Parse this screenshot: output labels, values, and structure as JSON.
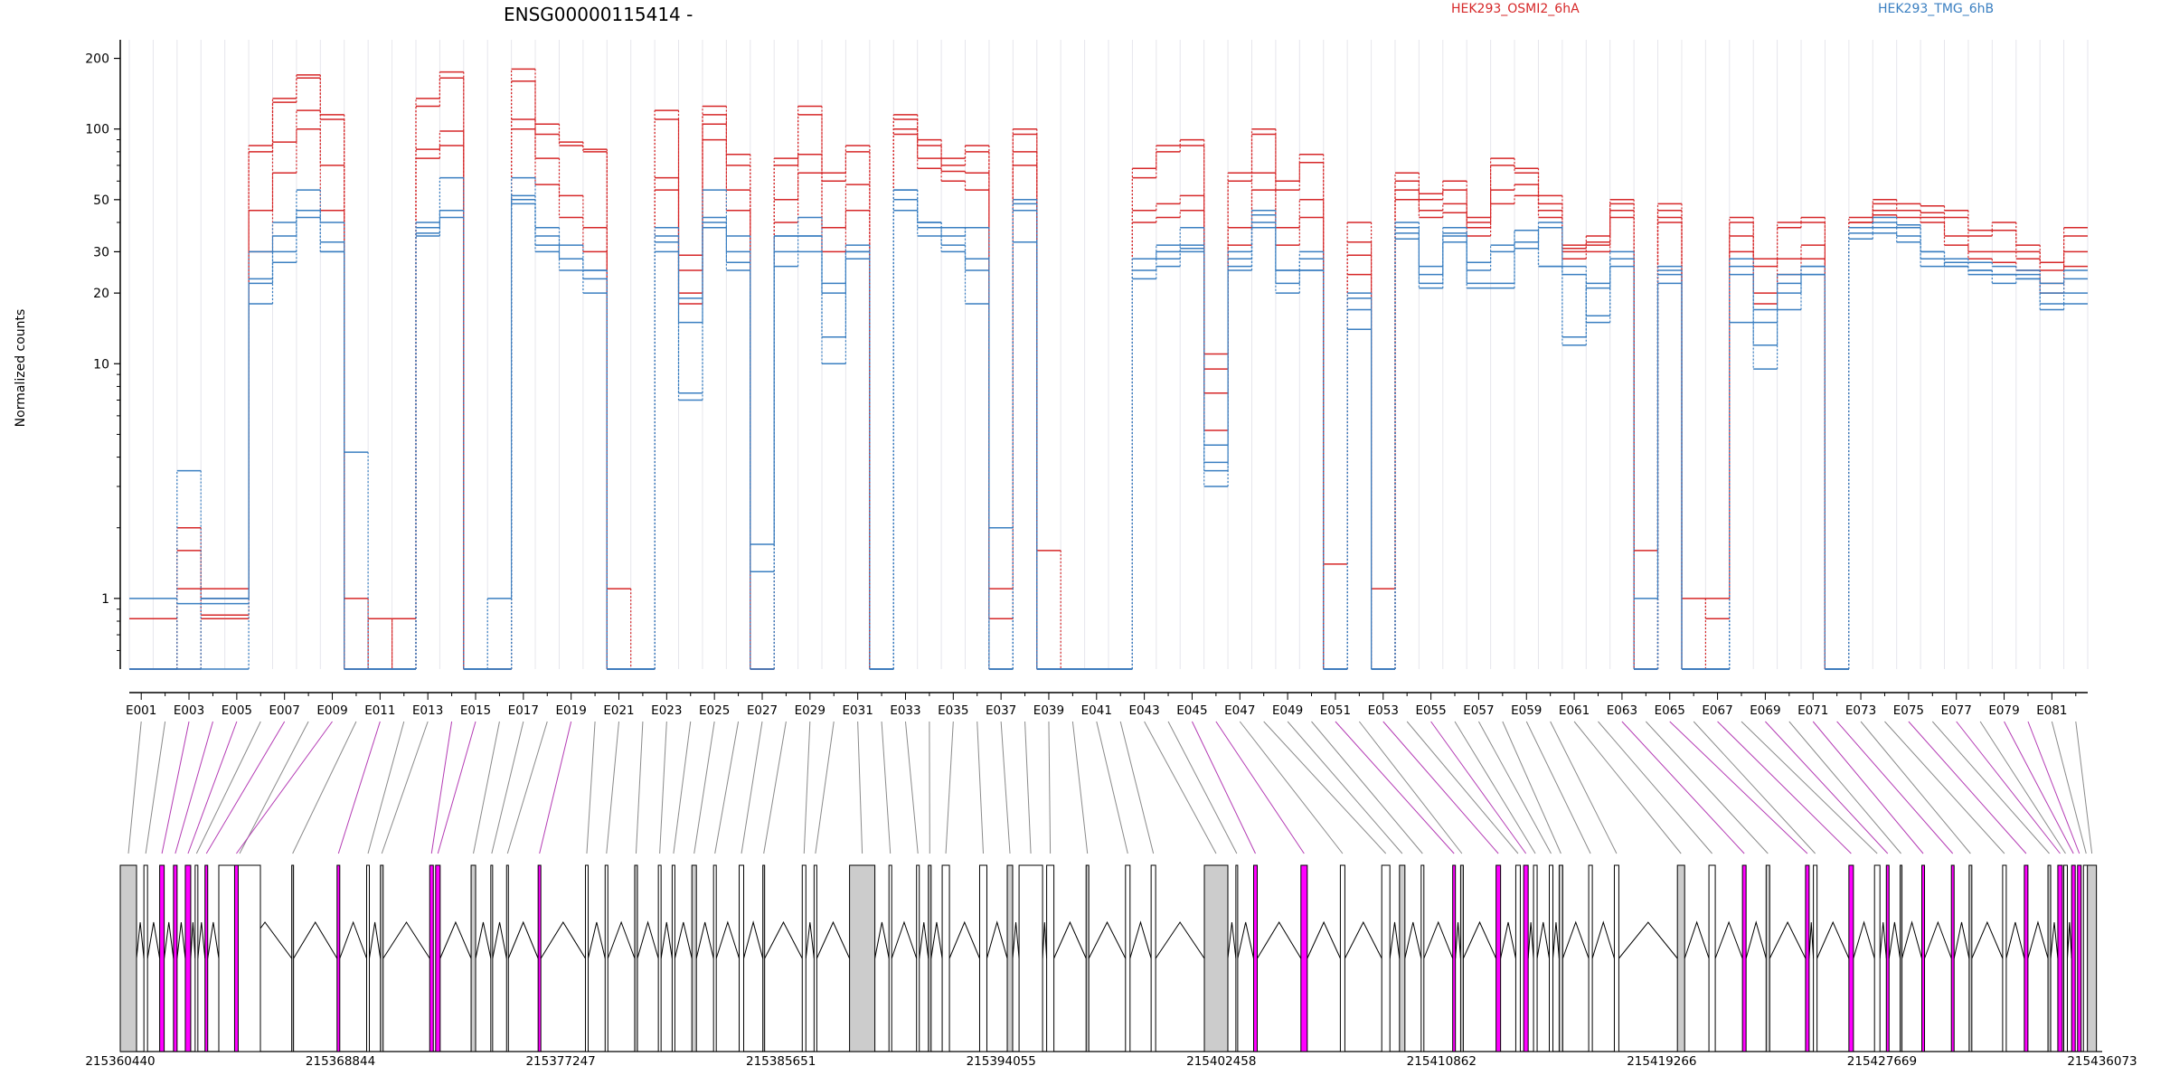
{
  "chart_data": {
    "type": "line",
    "title": "ENSG00000115414 -",
    "ylabel": "Normalized counts",
    "xlabel": "",
    "y_scale": "log",
    "ylim": [
      0.5,
      240
    ],
    "y_ticks": [
      "1",
      "10",
      "20",
      "30",
      "50",
      "100",
      "200"
    ],
    "y_tick_values": [
      1,
      10,
      20,
      30,
      50,
      100,
      200
    ],
    "grid": "vertical",
    "legend": [
      {
        "label": "HEK293_OSMI2_6hA",
        "color": "#d62728",
        "position": "top"
      },
      {
        "label": "HEK293_TMG_6hB",
        "color": "#3a7fc1",
        "position": "top-right"
      }
    ],
    "exons": [
      "E001",
      "E002",
      "E003",
      "E004",
      "E005",
      "E006",
      "E007",
      "E008",
      "E009",
      "E010",
      "E011",
      "E012",
      "E013",
      "E014",
      "E015",
      "E016",
      "E017",
      "E018",
      "E019",
      "E020",
      "E021",
      "E022",
      "E023",
      "E024",
      "E025",
      "E026",
      "E027",
      "E028",
      "E029",
      "E030",
      "E031",
      "E032",
      "E033",
      "E034",
      "E035",
      "E036",
      "E037",
      "E038",
      "E039",
      "E040",
      "E041",
      "E042",
      "E043",
      "E044",
      "E045",
      "E046",
      "E047",
      "E048",
      "E049",
      "E050",
      "E051",
      "E052",
      "E053",
      "E054",
      "E055",
      "E056",
      "E057",
      "E058",
      "E059",
      "E060",
      "E061",
      "E062",
      "E063",
      "E064",
      "E065",
      "E066",
      "E067",
      "E068",
      "E069",
      "E070",
      "E071",
      "E072",
      "E073",
      "E074",
      "E075",
      "E076",
      "E077",
      "E078",
      "E079",
      "E080",
      "E081",
      "E082"
    ],
    "x_tick_labels": [
      "E001",
      "E003",
      "E005",
      "E007",
      "E009",
      "E011",
      "E013",
      "E015",
      "E017",
      "E019",
      "E021",
      "E023",
      "E025",
      "E027",
      "E029",
      "E031",
      "E033",
      "E035",
      "E037",
      "E039",
      "E041",
      "E043",
      "E045",
      "E047",
      "E049",
      "E051",
      "E053",
      "E055",
      "E057",
      "E059",
      "E061",
      "E063",
      "E065",
      "E067",
      "E069",
      "E071",
      "E073",
      "E075",
      "E077",
      "E079",
      "E081"
    ],
    "series": [
      {
        "group": "HEK293_OSMI2_6hA",
        "color": "#d62728",
        "values": [
          0.82,
          0.82,
          1.6,
          1.1,
          1.1,
          80,
          135,
          170,
          110,
          1.0,
          0.5,
          0.82,
          135,
          175,
          0.5,
          0.5,
          180,
          105,
          85,
          80,
          1.1,
          0.5,
          120,
          29,
          125,
          78,
          0.5,
          75,
          125,
          65,
          85,
          0.5,
          115,
          90,
          75,
          85,
          0.82,
          100,
          1.6,
          0.5,
          0.5,
          0.5,
          68,
          85,
          90,
          9.5,
          65,
          100,
          60,
          78,
          1.4,
          40,
          1.1,
          65,
          53,
          60,
          42,
          75,
          68,
          52,
          32,
          35,
          50,
          1.6,
          48,
          1.0,
          0.82,
          42,
          28,
          40,
          42,
          0.5,
          42,
          50,
          48,
          47,
          45,
          37,
          40,
          32,
          27,
          38
        ]
      },
      {
        "group": "HEK293_OSMI2_6hA",
        "color": "#d62728",
        "values": [
          0.5,
          0.5,
          2.0,
          1.0,
          1.0,
          85,
          130,
          165,
          115,
          0.5,
          0.82,
          0.5,
          125,
          165,
          0.5,
          0.5,
          160,
          95,
          88,
          82,
          0.5,
          0.5,
          110,
          25,
          115,
          70,
          0.5,
          70,
          115,
          60,
          80,
          0.5,
          110,
          85,
          70,
          80,
          1.1,
          95,
          0.5,
          0.5,
          0.5,
          0.5,
          62,
          80,
          85,
          11,
          60,
          95,
          55,
          72,
          0.5,
          33,
          0.5,
          60,
          50,
          55,
          40,
          70,
          65,
          48,
          30,
          33,
          48,
          0.5,
          45,
          0.5,
          1.0,
          40,
          26,
          38,
          40,
          0.5,
          40,
          48,
          45,
          44,
          42,
          35,
          37,
          30,
          25,
          35
        ]
      },
      {
        "group": "HEK293_OSMI2_6hA",
        "color": "#d62728",
        "values": [
          0.5,
          0.5,
          1.1,
          0.85,
          0.85,
          45,
          88,
          120,
          70,
          0.5,
          0.5,
          0.5,
          82,
          98,
          0.5,
          0.5,
          110,
          75,
          52,
          38,
          0.5,
          0.5,
          62,
          20,
          105,
          55,
          0.5,
          50,
          78,
          38,
          58,
          0.5,
          100,
          75,
          66,
          65,
          0.82,
          80,
          0.5,
          0.5,
          0.5,
          0.5,
          45,
          48,
          52,
          5.2,
          38,
          65,
          38,
          50,
          0.5,
          29,
          0.5,
          55,
          45,
          48,
          38,
          55,
          58,
          45,
          31,
          32,
          45,
          0.5,
          42,
          0.5,
          0.5,
          35,
          20,
          28,
          32,
          0.5,
          40,
          45,
          45,
          42,
          35,
          30,
          30,
          28,
          22,
          30
        ]
      },
      {
        "group": "HEK293_OSMI2_6hA",
        "color": "#d62728",
        "values": [
          0.5,
          0.5,
          0.5,
          0.82,
          0.82,
          30,
          65,
          100,
          45,
          0.5,
          0.5,
          0.5,
          75,
          85,
          0.5,
          0.5,
          100,
          58,
          42,
          30,
          0.5,
          0.5,
          55,
          18,
          90,
          45,
          0.5,
          40,
          65,
          30,
          45,
          0.5,
          95,
          68,
          60,
          55,
          0.5,
          70,
          0.5,
          0.5,
          0.5,
          0.5,
          40,
          42,
          45,
          7.5,
          32,
          55,
          32,
          42,
          0.5,
          24,
          0.5,
          50,
          42,
          44,
          35,
          48,
          52,
          42,
          28,
          30,
          42,
          0.5,
          40,
          0.5,
          0.5,
          30,
          18,
          24,
          28,
          0.5,
          38,
          43,
          42,
          40,
          32,
          28,
          27,
          25,
          20,
          26
        ]
      },
      {
        "group": "HEK293_TMG_6hB",
        "color": "#3a7fc1",
        "values": [
          1.0,
          1.0,
          0.95,
          0.95,
          0.95,
          18,
          27,
          45,
          30,
          0.5,
          0.5,
          0.5,
          38,
          45,
          0.5,
          1.0,
          52,
          35,
          28,
          25,
          0.5,
          0.5,
          33,
          7.5,
          40,
          27,
          0.5,
          26,
          42,
          10,
          30,
          0.5,
          55,
          40,
          38,
          18,
          2.0,
          33,
          0.5,
          0.5,
          0.5,
          0.5,
          23,
          30,
          31,
          3.8,
          26,
          38,
          20,
          25,
          0.5,
          14,
          0.5,
          38,
          21,
          36,
          21,
          21,
          37,
          26,
          13,
          21,
          26,
          1.0,
          22,
          0.5,
          0.5,
          15,
          9.5,
          17,
          24,
          0.5,
          38,
          42,
          39,
          26,
          27,
          25,
          22,
          23,
          17,
          18
        ]
      },
      {
        "group": "HEK293_TMG_6hB",
        "color": "#3a7fc1",
        "values": [
          0.5,
          0.5,
          3.5,
          1.0,
          1.0,
          23,
          35,
          55,
          40,
          4.2,
          0.5,
          0.5,
          40,
          62,
          0.5,
          0.5,
          62,
          38,
          32,
          25,
          0.5,
          0.5,
          35,
          7.0,
          55,
          35,
          0.5,
          35,
          35,
          13,
          30,
          0.5,
          55,
          40,
          35,
          38,
          0.5,
          48,
          0.5,
          0.5,
          0.5,
          0.5,
          28,
          32,
          38,
          3.5,
          30,
          45,
          25,
          30,
          0.5,
          20,
          0.5,
          40,
          22,
          38,
          22,
          22,
          37,
          26,
          12,
          22,
          28,
          0.5,
          25,
          0.5,
          0.5,
          28,
          12,
          20,
          26,
          0.5,
          38,
          40,
          38,
          30,
          26,
          24,
          24,
          24,
          18,
          20
        ]
      },
      {
        "group": "HEK293_TMG_6hB",
        "color": "#3a7fc1",
        "values": [
          0.5,
          0.5,
          0.5,
          1.0,
          1.0,
          30,
          40,
          45,
          33,
          0.5,
          0.5,
          0.5,
          36,
          45,
          0.5,
          0.5,
          50,
          32,
          28,
          23,
          0.5,
          0.5,
          38,
          19,
          42,
          30,
          1.7,
          35,
          35,
          22,
          32,
          0.5,
          50,
          38,
          32,
          28,
          0.5,
          50,
          0.5,
          0.5,
          0.5,
          0.5,
          28,
          28,
          32,
          4.5,
          28,
          43,
          25,
          28,
          0.5,
          19,
          0.5,
          36,
          26,
          35,
          27,
          32,
          33,
          40,
          26,
          16,
          30,
          0.5,
          26,
          0.5,
          0.5,
          26,
          17,
          24,
          26,
          0.5,
          36,
          38,
          35,
          30,
          28,
          27,
          26,
          25,
          22,
          25
        ]
      },
      {
        "group": "HEK293_TMG_6hB",
        "color": "#3a7fc1",
        "values": [
          0.5,
          0.5,
          0.5,
          0.5,
          0.5,
          22,
          30,
          42,
          30,
          0.5,
          0.5,
          0.5,
          35,
          42,
          0.5,
          0.5,
          48,
          30,
          25,
          20,
          0.5,
          0.5,
          30,
          15,
          38,
          25,
          1.3,
          30,
          30,
          20,
          28,
          0.5,
          45,
          35,
          30,
          25,
          0.5,
          45,
          0.5,
          0.5,
          0.5,
          0.5,
          25,
          26,
          30,
          3.0,
          25,
          40,
          22,
          25,
          0.5,
          17,
          0.5,
          34,
          24,
          33,
          25,
          30,
          31,
          38,
          24,
          15,
          28,
          0.5,
          24,
          0.5,
          0.5,
          24,
          15,
          22,
          24,
          0.5,
          34,
          36,
          33,
          28,
          26,
          25,
          24,
          23,
          20,
          23
        ]
      }
    ],
    "genomic_coordinates": [
      "215360440",
      "215368844",
      "215377247",
      "215385651",
      "215394055",
      "215402458",
      "215410862",
      "215419266",
      "215427669",
      "215436073"
    ],
    "gene_model": {
      "exon_colors": {
        "normal": "#cccccc",
        "significant": "#ff00ff",
        "intron": "#000000"
      },
      "significant_exons": [
        "E003",
        "E004",
        "E005",
        "E007",
        "E009",
        "E011",
        "E014",
        "E015",
        "E019",
        "E045",
        "E046",
        "E051",
        "E053",
        "E055",
        "E063",
        "E065",
        "E067",
        "E069",
        "E071",
        "E072",
        "E075",
        "E077",
        "E079",
        "E080"
      ]
    }
  }
}
